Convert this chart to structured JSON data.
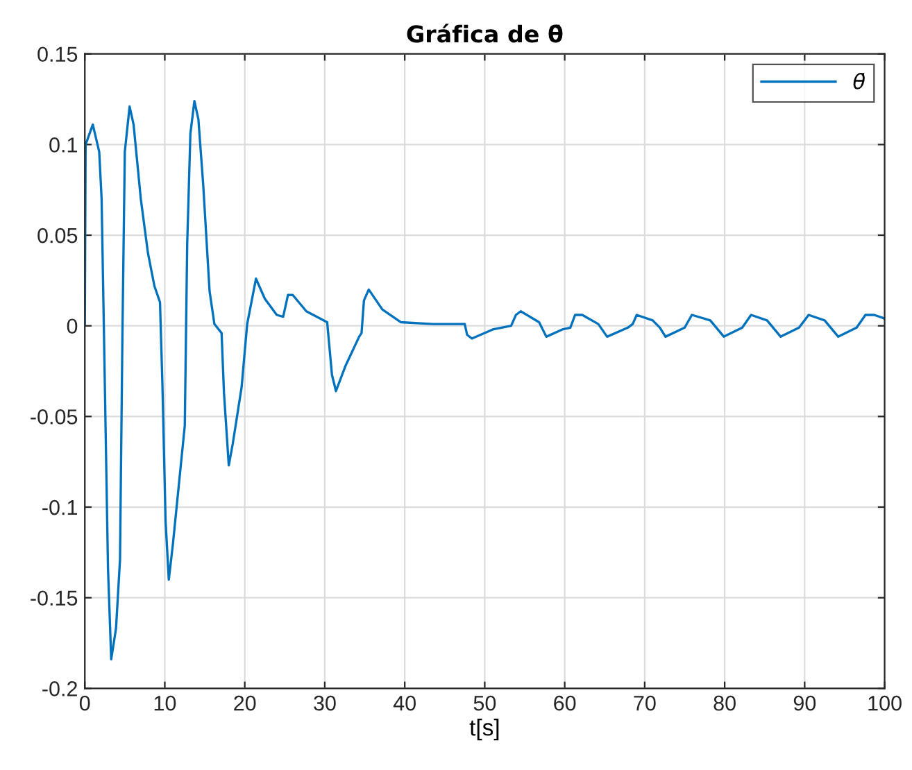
{
  "chart_data": {
    "type": "line",
    "title": "Gráfica de θ̇",
    "xlabel": "t[s]",
    "x": [
      0,
      0.1,
      1.0,
      1.8,
      2.1,
      2.4,
      2.9,
      3.3,
      3.9,
      4.4,
      4.7,
      5.0,
      5.6,
      6.1,
      7.0,
      7.9,
      8.7,
      9.4,
      9.7,
      10.1,
      10.5,
      11.0,
      12.5,
      12.8,
      13.2,
      13.7,
      14.2,
      14.8,
      15.6,
      16.2,
      17.1,
      17.4,
      18.0,
      18.5,
      19.6,
      20.3,
      21.4,
      22.5,
      24.0,
      24.8,
      25.4,
      26.0,
      27.7,
      30.3,
      30.9,
      31.4,
      32.6,
      34.3,
      34.6,
      34.9,
      35.5,
      37.2,
      39.5,
      43.5,
      47.5,
      47.8,
      48.4,
      51.0,
      53.3,
      53.9,
      54.5,
      56.8,
      57.7,
      59.7,
      60.7,
      61.3,
      62.2,
      64.2,
      65.3,
      67.9,
      68.5,
      69.0,
      71.0,
      71.9,
      72.6,
      75.0,
      75.9,
      78.2,
      79.9,
      82.2,
      83.3,
      85.3,
      87.0,
      89.3,
      90.5,
      92.5,
      94.2,
      96.5,
      97.6,
      98.7,
      100
    ],
    "series": [
      {
        "name": "θ̇",
        "color": "#0072bd",
        "values": [
          0.001,
          0.1,
          0.111,
          0.096,
          0.07,
          -0.006,
          -0.134,
          -0.184,
          -0.167,
          -0.129,
          -0.006,
          0.096,
          0.121,
          0.111,
          0.07,
          0.04,
          0.022,
          0.013,
          -0.032,
          -0.108,
          -0.14,
          -0.121,
          -0.055,
          0.045,
          0.106,
          0.124,
          0.114,
          0.078,
          0.019,
          0.001,
          -0.004,
          -0.037,
          -0.077,
          -0.065,
          -0.034,
          0.001,
          0.026,
          0.015,
          0.006,
          0.005,
          0.017,
          0.017,
          0.008,
          0.002,
          -0.027,
          -0.036,
          -0.022,
          -0.006,
          -0.004,
          0.014,
          0.02,
          0.009,
          0.002,
          0.001,
          0.001,
          -0.005,
          -0.007,
          -0.002,
          0.0,
          0.006,
          0.008,
          0.002,
          -0.006,
          -0.002,
          -0.001,
          0.006,
          0.006,
          0.001,
          -0.006,
          -0.001,
          0.001,
          0.006,
          0.003,
          -0.001,
          -0.006,
          -0.001,
          0.006,
          0.003,
          -0.006,
          -0.001,
          0.006,
          0.003,
          -0.006,
          -0.001,
          0.006,
          0.003,
          -0.006,
          -0.001,
          0.006,
          0.006,
          0.004
        ]
      }
    ],
    "xlim": [
      0,
      100
    ],
    "xticks": [
      0,
      10,
      20,
      30,
      40,
      50,
      60,
      70,
      80,
      90,
      100
    ],
    "ylim": [
      -0.2,
      0.15
    ],
    "yticks": [
      -0.2,
      -0.15,
      -0.1,
      -0.05,
      0,
      0.05,
      0.1,
      0.15
    ],
    "grid": true,
    "legend": "top right",
    "line_style": "solid",
    "marker": "none"
  }
}
